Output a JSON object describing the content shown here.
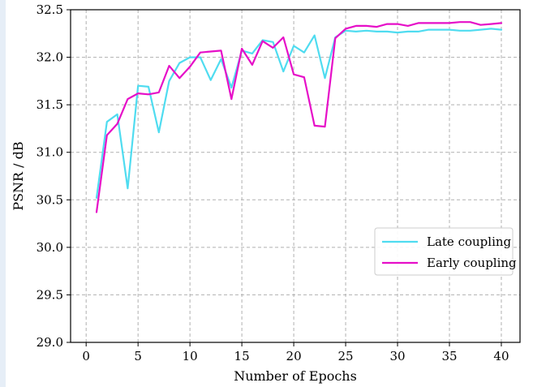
{
  "chart_data": {
    "type": "line",
    "title": "",
    "xlabel": "Number of Epochs",
    "ylabel": "PSNR / dB",
    "xlim": [
      -1.5,
      41.8
    ],
    "ylim": [
      29.0,
      32.5
    ],
    "xticks": [
      0,
      5,
      10,
      15,
      20,
      25,
      30,
      35,
      40
    ],
    "yticks": [
      29.0,
      29.5,
      30.0,
      30.5,
      31.0,
      31.5,
      32.0,
      32.5
    ],
    "xtick_labels": [
      "0",
      "5",
      "10",
      "15",
      "20",
      "25",
      "30",
      "35",
      "40"
    ],
    "ytick_labels": [
      "29.0",
      "29.5",
      "30.0",
      "30.5",
      "31.0",
      "31.5",
      "32.0",
      "32.5"
    ],
    "grid": true,
    "legend_position": "lower-right",
    "x": [
      1,
      2,
      3,
      4,
      5,
      6,
      7,
      8,
      9,
      10,
      11,
      12,
      13,
      14,
      15,
      16,
      17,
      18,
      19,
      20,
      21,
      22,
      23,
      24,
      25,
      26,
      27,
      28,
      29,
      30,
      31,
      32,
      33,
      34,
      35,
      36,
      37,
      38,
      39,
      40
    ],
    "series": [
      {
        "name": "Late coupling",
        "color": "#4fdcf0",
        "values": [
          30.52,
          31.32,
          31.4,
          30.62,
          31.7,
          31.69,
          31.21,
          31.75,
          31.94,
          32.0,
          32.0,
          31.76,
          31.98,
          31.68,
          32.07,
          32.04,
          32.18,
          32.16,
          31.85,
          32.12,
          32.05,
          32.23,
          31.78,
          32.21,
          32.28,
          32.27,
          32.28,
          32.27,
          32.27,
          32.26,
          32.27,
          32.27,
          32.29,
          32.29,
          32.29,
          32.28,
          32.28,
          32.29,
          32.3,
          32.29
        ]
      },
      {
        "name": "Early coupling",
        "color": "#e60fc8",
        "values": [
          30.37,
          31.18,
          31.3,
          31.56,
          31.62,
          31.61,
          31.63,
          31.91,
          31.78,
          31.9,
          32.05,
          32.06,
          32.07,
          31.56,
          32.09,
          31.92,
          32.17,
          32.1,
          32.21,
          31.82,
          31.79,
          31.28,
          31.27,
          32.2,
          32.3,
          32.33,
          32.33,
          32.32,
          32.35,
          32.35,
          32.33,
          32.36,
          32.36,
          32.36,
          32.36,
          32.37,
          32.37,
          32.34,
          32.35,
          32.36
        ]
      }
    ]
  }
}
